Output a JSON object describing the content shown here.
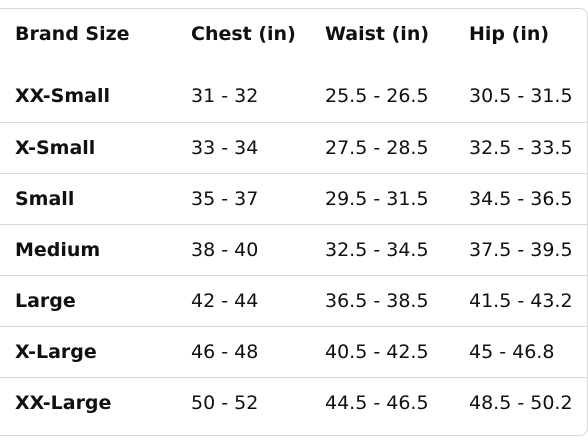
{
  "size_chart": {
    "headers": [
      "Brand Size",
      "Chest (in)",
      "Waist (in)",
      "Hip (in)"
    ],
    "rows": [
      [
        "XX-Small",
        "31 - 32",
        "25.5 - 26.5",
        "30.5 - 31.5"
      ],
      [
        "X-Small",
        "33 - 34",
        "27.5 - 28.5",
        "32.5 - 33.5"
      ],
      [
        "Small",
        "35 - 37",
        "29.5 - 31.5",
        "34.5 - 36.5"
      ],
      [
        "Medium",
        "38 - 40",
        "32.5 - 34.5",
        "37.5 - 39.5"
      ],
      [
        "Large",
        "42 - 44",
        "36.5 - 38.5",
        "41.5 - 43.2"
      ],
      [
        "X-Large",
        "46 - 48",
        "40.5 - 42.5",
        "45 - 46.8"
      ],
      [
        "XX-Large",
        "50 - 52",
        "44.5 - 46.5",
        "48.5 - 50.2"
      ]
    ]
  }
}
